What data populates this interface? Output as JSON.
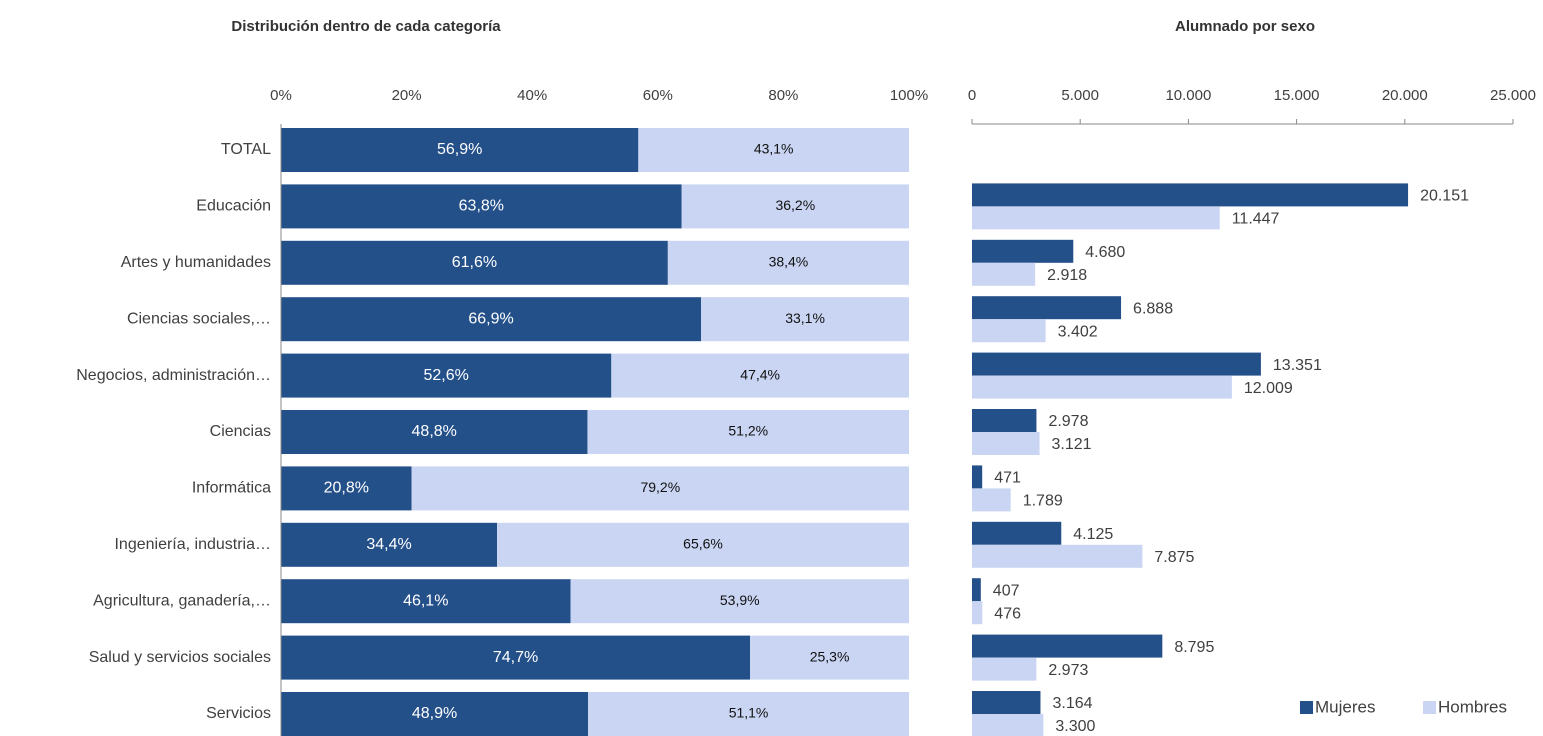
{
  "chart_data": [
    {
      "type": "stacked_bar_horizontal",
      "title": "Distribución dentro de cada categoría",
      "categories": [
        "TOTAL",
        "Educación",
        "Artes y humanidades",
        "Ciencias sociales,…",
        "Negocios, administración…",
        "Ciencias",
        "Informática",
        "Ingeniería, industria…",
        "Agricultura, ganadería,…",
        "Salud y servicios sociales",
        "Servicios"
      ],
      "series": [
        {
          "color": "#24508a",
          "values": [
            56.9,
            63.8,
            61.6,
            66.9,
            52.6,
            48.8,
            20.8,
            34.4,
            46.1,
            74.7,
            48.9
          ],
          "value_labels": [
            "56,9%",
            "63,8%",
            "61,6%",
            "66,9%",
            "52,6%",
            "48,8%",
            "20,8%",
            "34,4%",
            "46,1%",
            "74,7%",
            "48,9%"
          ]
        },
        {
          "color": "#c9d5f2",
          "values": [
            43.1,
            36.2,
            38.4,
            33.1,
            47.4,
            51.2,
            79.2,
            65.6,
            53.9,
            25.3,
            51.1
          ],
          "value_labels": [
            "43,1%",
            "36,2%",
            "38,4%",
            "33,1%",
            "47,4%",
            "51,2%",
            "79,2%",
            "65,6%",
            "53,9%",
            "25,3%",
            "51,1%"
          ]
        }
      ],
      "xlim": [
        0,
        100
      ],
      "xticks": [
        {
          "value": 0,
          "label": "0%"
        },
        {
          "value": 20,
          "label": "20%"
        },
        {
          "value": 40,
          "label": "40%"
        },
        {
          "value": 60,
          "label": "60%"
        },
        {
          "value": 80,
          "label": "80%"
        },
        {
          "value": 100,
          "label": "100%"
        }
      ]
    },
    {
      "type": "grouped_bar_horizontal",
      "title": "Alumnado por sexo",
      "series": [
        {
          "name": "Mujeres",
          "color": "#24508a",
          "values": [
            20151,
            4680,
            6888,
            13351,
            2978,
            471,
            4125,
            407,
            8795,
            3164
          ],
          "value_labels": [
            "20.151",
            "4.680",
            "6.888",
            "13.351",
            "2.978",
            "471",
            "4.125",
            "407",
            "8.795",
            "3.164"
          ]
        },
        {
          "name": "Hombres",
          "color": "#c9d5f2",
          "values": [
            11447,
            2918,
            3402,
            12009,
            3121,
            1789,
            7875,
            476,
            2973,
            3300
          ],
          "value_labels": [
            "11.447",
            "2.918",
            "3.402",
            "12.009",
            "3.121",
            "1.789",
            "7.875",
            "476",
            "2.973",
            "3.300"
          ]
        }
      ],
      "xlim": [
        0,
        25000
      ],
      "xticks": [
        0,
        {
          "value": 5000,
          "label": "5.000"
        },
        {
          "value": 10000,
          "label": "10.000"
        },
        {
          "value": 15000,
          "label": "15.000"
        },
        {
          "value": 20000,
          "label": "20.000"
        },
        {
          "value": 25000,
          "label": "25.000"
        }
      ],
      "legend": "bottom-right"
    }
  ]
}
